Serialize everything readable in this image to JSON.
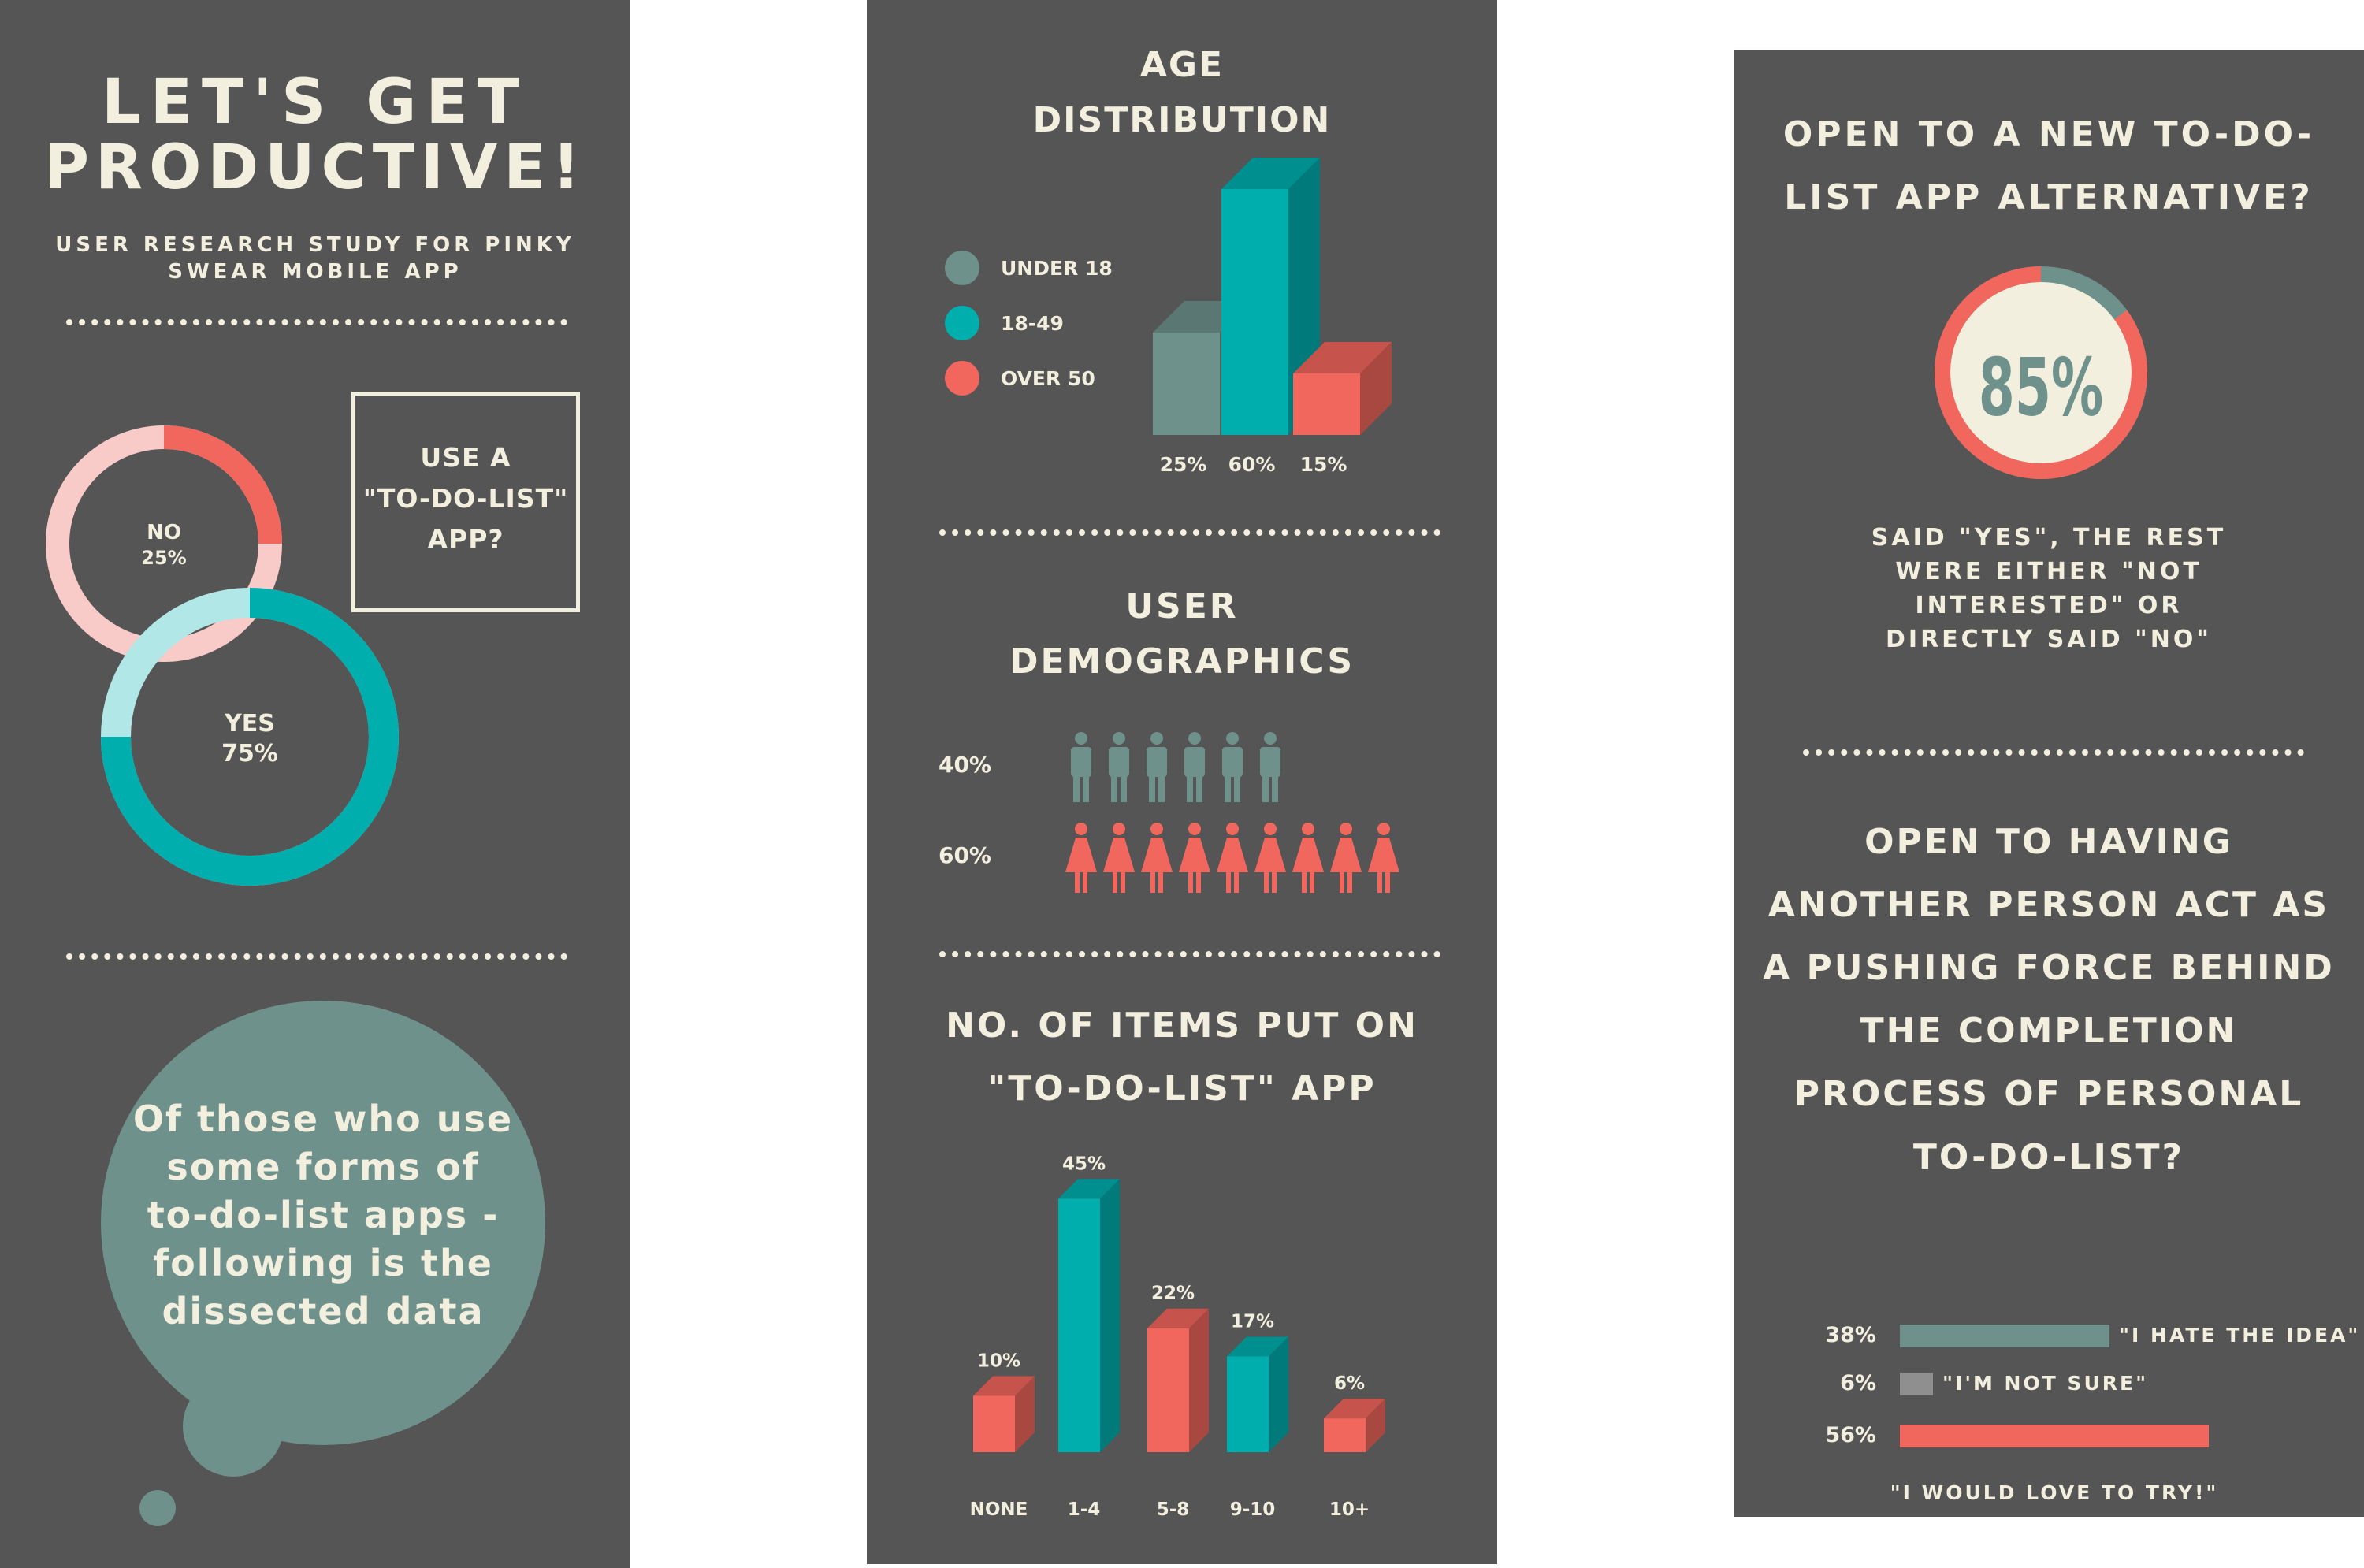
{
  "panel1": {
    "title_line1": "LET'S GET",
    "title_line2": "PRODUCTIVE!",
    "subtitle": "USER RESEARCH STUDY FOR PINKY\nSWEAR MOBILE APP",
    "box_label": "USE A\n\"TO-DO-LIST\"\nAPP?",
    "bubble_text": "Of those who use\nsome forms of\nto-do-list apps -\nfollowing is the\ndissected data"
  },
  "panel2": {
    "title1": "AGE\nDISTRIBUTION",
    "title2": "USER\nDEMOGRAPHICS",
    "title3": "NO. OF ITEMS PUT ON\n\"TO-DO-LIST\" APP"
  },
  "panel3": {
    "title1": "OPEN TO A NEW TO-DO-\nLIST APP ALTERNATIVE?",
    "caption": "SAID \"YES\", THE REST\nWERE EITHER \"NOT\nINTERESTED\" OR\nDIRECTLY SAID \"NO\"",
    "title2": "OPEN TO HAVING\nANOTHER PERSON ACT AS\nA PUSHING FORCE BEHIND\nTHE COMPLETION\nPROCESS OF PERSONAL\nTO-DO-LIST?"
  },
  "colors": {
    "panel": "#555555",
    "text": "#f3efdf",
    "gray_teal": "#6f918c",
    "teal": "#00aeae",
    "coral": "#f2675d",
    "pink": "#f8cbc8",
    "light_teal": "#b2e7e7",
    "neutral": "#8f8f8f"
  },
  "chart_data": [
    {
      "type": "pie",
      "question": "USE A \"TO-DO-LIST\" APP?",
      "slices": [
        {
          "label": "NO",
          "value": 25,
          "display": "25%"
        },
        {
          "label": "YES",
          "value": 75,
          "display": "75%"
        }
      ]
    },
    {
      "type": "bar",
      "title": "AGE DISTRIBUTION",
      "legend": [
        "UNDER 18",
        "18-49",
        "OVER 50"
      ],
      "legend_placement": "left",
      "values": [
        25,
        60,
        15
      ],
      "value_labels": [
        "25%",
        "60%",
        "15%"
      ]
    },
    {
      "type": "bar",
      "title": "USER DEMOGRAPHICS",
      "rows": [
        {
          "label": "40%",
          "value": 40,
          "icon": "male-person-icon",
          "count": 6
        },
        {
          "label": "60%",
          "value": 60,
          "icon": "female-person-icon",
          "count": 9
        }
      ]
    },
    {
      "type": "bar",
      "title": "NO. OF ITEMS PUT ON \"TO-DO-LIST\" APP",
      "categories": [
        "NONE",
        "1-4",
        "5-8",
        "9-10",
        "10+"
      ],
      "values": [
        10,
        45,
        22,
        17,
        6
      ],
      "value_labels": [
        "10%",
        "45%",
        "22%",
        "17%",
        "6%"
      ]
    },
    {
      "type": "pie",
      "title": "OPEN TO A NEW TO-DO-LIST APP ALTERNATIVE?",
      "value": 85,
      "display": "85%"
    },
    {
      "type": "bar",
      "title": "OPEN TO HAVING ANOTHER PERSON ACT AS A PUSHING FORCE BEHIND THE COMPLETION PROCESS OF PERSONAL TO-DO-LIST?",
      "orientation": "horizontal",
      "categories": [
        "\"I HATE THE IDEA\"",
        "\"I'M NOT SURE\"",
        "\"I WOULD LOVE TO TRY!\""
      ],
      "values": [
        38,
        6,
        56
      ],
      "value_labels": [
        "38%",
        "6%",
        "56%"
      ]
    }
  ]
}
